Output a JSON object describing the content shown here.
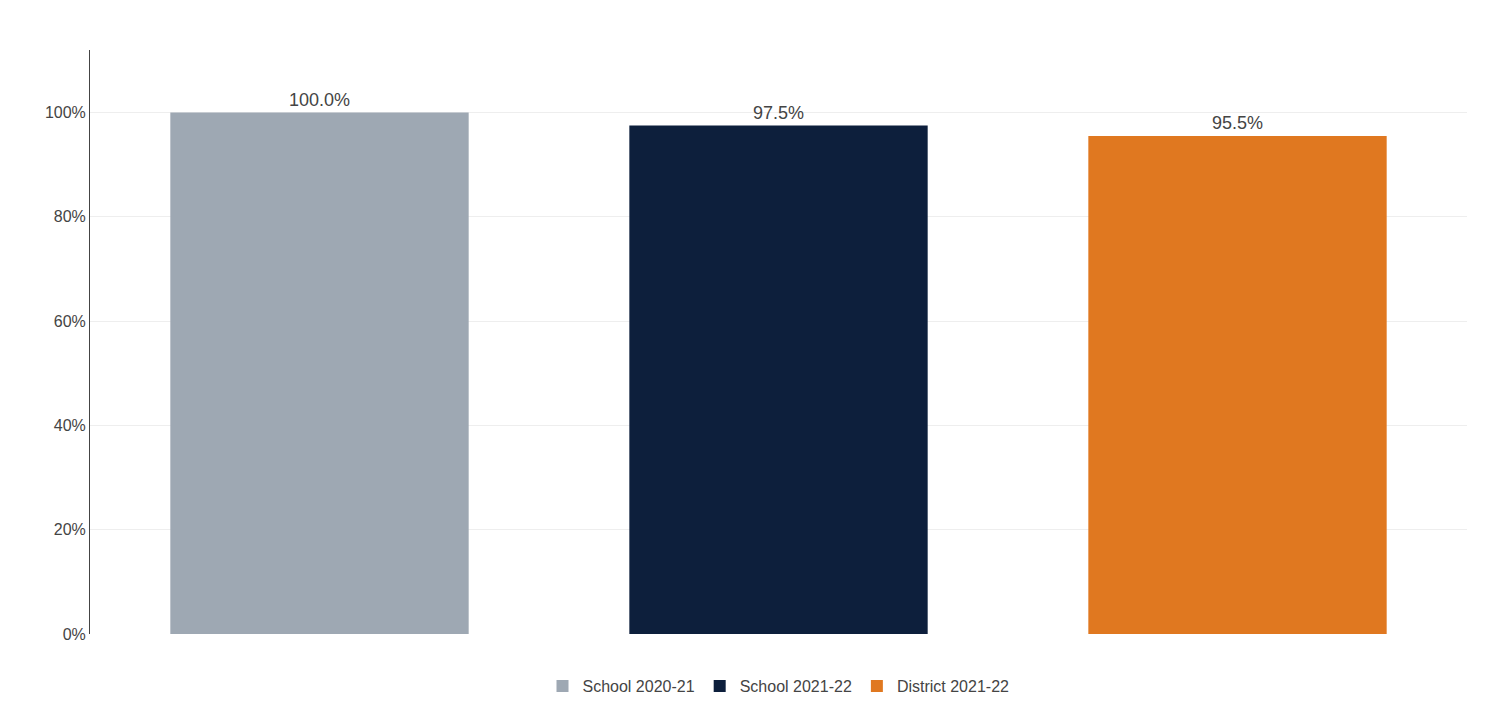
{
  "chart_data": {
    "type": "bar",
    "categories": [
      "School 2020-21",
      "School 2021-22",
      "District 2021-22"
    ],
    "values": [
      100.0,
      97.5,
      95.5
    ],
    "value_labels": [
      "100.0%",
      "97.5%",
      "95.5%"
    ],
    "colors": [
      "#9EA8B3",
      "#0D1F3C",
      "#E07820"
    ],
    "data_labels": true,
    "ylim": [
      0,
      112
    ],
    "yticks": [
      {
        "value": 0,
        "label": "0%"
      },
      {
        "value": 20,
        "label": "20%"
      },
      {
        "value": 40,
        "label": "40%"
      },
      {
        "value": 60,
        "label": "60%"
      },
      {
        "value": 80,
        "label": "80%"
      },
      {
        "value": 100,
        "label": "100%"
      }
    ],
    "grid": true,
    "legend": "bottom",
    "tick_labels": "y"
  }
}
